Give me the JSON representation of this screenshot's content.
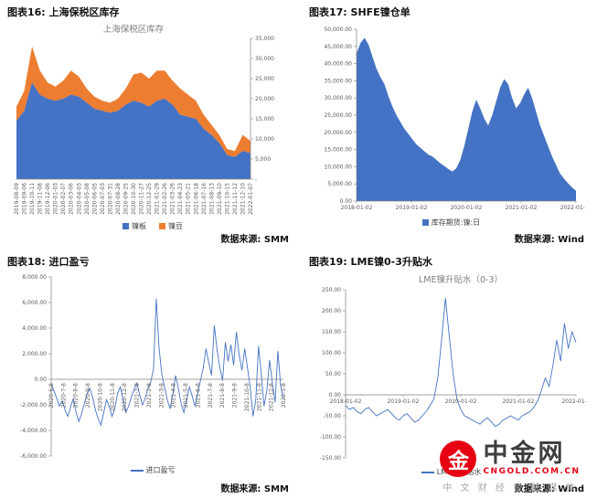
{
  "chart_data": [
    {
      "type": "stacked_area",
      "header": "图表16: 上海保税区库存",
      "inner_title": "上海保税区库存",
      "source_label": "数据来源:",
      "source": "SMM",
      "ylim": [
        0,
        35000
      ],
      "y_ticks": [
        "35,000",
        "30,000",
        "25,000",
        "20,000",
        "15,000",
        "10,000",
        "5,000",
        "-"
      ],
      "categories": [
        "2019-08-09",
        "2019-09-06",
        "2019-10-11",
        "2019-11-08",
        "2019-12-06",
        "2020-01-03",
        "2020-02-07",
        "2020-03-06",
        "2020-04-03",
        "2020-05-08",
        "2020-06-05",
        "2020-07-03",
        "2020-07-31",
        "2020-08-28",
        "2020-09-25",
        "2020-10-30",
        "2020-11-27",
        "2020-12-25",
        "2021-01-29",
        "2021-02-26",
        "2021-03-26",
        "2021-04-23",
        "2021-05-21",
        "2021-06-18",
        "2021-07-16",
        "2021-08-13",
        "2021-09-10",
        "2021-10-15",
        "2021-11-12",
        "2021-12-10",
        "2022-01-07"
      ],
      "series": [
        {
          "name": "镍板",
          "color": "#4472c4",
          "values": [
            14500,
            17000,
            24000,
            21000,
            20000,
            19500,
            20000,
            21000,
            20500,
            19000,
            17500,
            17000,
            16500,
            17000,
            18500,
            19500,
            19000,
            18000,
            19500,
            20000,
            18500,
            16000,
            15500,
            15000,
            12500,
            11000,
            9000,
            6000,
            5500,
            7000,
            6500
          ]
        },
        {
          "name": "镍豆",
          "color": "#ed7d31",
          "values": [
            3500,
            5000,
            9000,
            6000,
            4000,
            3500,
            4500,
            6000,
            5000,
            3500,
            3000,
            2500,
            2500,
            3000,
            4000,
            6500,
            7500,
            7000,
            7500,
            7000,
            6000,
            6500,
            5500,
            4500,
            3500,
            2500,
            2000,
            1500,
            1500,
            4000,
            3000
          ]
        }
      ]
    },
    {
      "type": "area",
      "header": "图表17: SHFE镍仓单",
      "inner_title": "",
      "source_label": "数据来源:",
      "source": "Wind",
      "ylim": [
        0,
        50000
      ],
      "y_ticks": [
        "50,000.00",
        "45,000.00",
        "40,000.00",
        "35,000.00",
        "30,000.00",
        "25,000.00",
        "20,000.00",
        "15,000.00",
        "10,000.00",
        "5,000.00",
        "0.00"
      ],
      "x_ticks": [
        "2018-01-02",
        "2019-01-02",
        "2020-01-02",
        "2021-01-02",
        "2022-01-02"
      ],
      "series": [
        {
          "name": "库存期货:镍:日",
          "color": "#4472c4",
          "values": [
            43000,
            46000,
            47500,
            45500,
            42000,
            38500,
            36000,
            34000,
            30500,
            27500,
            25000,
            23000,
            21000,
            19500,
            18000,
            16500,
            15500,
            14500,
            13500,
            13000,
            12000,
            11000,
            10200,
            9300,
            8600,
            9500,
            12000,
            16000,
            21000,
            26000,
            29500,
            27000,
            24000,
            22000,
            25000,
            29000,
            33000,
            35500,
            34000,
            30000,
            27000,
            28500,
            31000,
            33000,
            30000,
            26000,
            22000,
            19000,
            16000,
            13000,
            10500,
            8000,
            6500,
            5200,
            4000,
            3000
          ]
        }
      ]
    },
    {
      "type": "line",
      "header": "图表18: 进口盈亏",
      "inner_title": "",
      "source_label": "数据来源:",
      "source": "SMM",
      "ylim": [
        -6000,
        8000
      ],
      "y_ticks": [
        "8,000.00",
        "6,000.00",
        "4,000.00",
        "2,000.00",
        "0.00",
        "-2,000.00",
        "-4,000.00",
        "-6,000.00"
      ],
      "x_ticks": [
        "2020-6-8",
        "2020-7-8",
        "2020-8-8",
        "2020-9-8",
        "2020-10-8",
        "2020-11-8",
        "2020-12-8",
        "2021-1-8",
        "2021-2-8",
        "2021-3-8",
        "2021-4-8",
        "2021-5-8",
        "2021-6-8",
        "2021-7-8",
        "2021-8-8",
        "2021-9-8",
        "2021-10-8",
        "2021-11-8",
        "2021-12-8",
        "2022-1-8"
      ],
      "series": [
        {
          "name": "进口盈亏",
          "color": "#4472c4",
          "values": [
            -400,
            -900,
            -1500,
            -2100,
            -1700,
            -2400,
            -2900,
            -2200,
            -1500,
            -2600,
            -3300,
            -2700,
            -1900,
            -1100,
            -700,
            -1400,
            -2400,
            -3100,
            -3600,
            -2600,
            -1600,
            -2100,
            -2900,
            -2300,
            -1100,
            -600,
            -1600,
            -2600,
            -2100,
            -1400,
            -800,
            -300,
            -1200,
            -2000,
            -1500,
            -700,
            -200,
            800,
            6300,
            2500,
            400,
            -600,
            -1600,
            -2300,
            -1200,
            300,
            -700,
            -1900,
            -2600,
            -1600,
            -600,
            -1300,
            -2100,
            -1100,
            -100,
            900,
            2400,
            1300,
            300,
            4200,
            2300,
            900,
            -100,
            2900,
            1400,
            2700,
            1100,
            3700,
            1900,
            700,
            2400,
            900,
            -600,
            -2900,
            -1600,
            2600,
            400,
            -2100,
            -900,
            1500,
            -300,
            -1800,
            2200,
            -500,
            -1500
          ]
        }
      ]
    },
    {
      "type": "line",
      "header": "图表19: LME镍0-3升贴水",
      "inner_title": "LME镍升贴水（0-3）",
      "source_label": "数据来源:",
      "source": "Wind",
      "ylim": [
        -150,
        250
      ],
      "y_ticks": [
        "250.00",
        "200.00",
        "150.00",
        "100.00",
        "50.00",
        "0.00",
        "-50.00",
        "-100.00",
        "-150.00"
      ],
      "x_ticks": [
        "2018-01-02",
        "2019-01-02",
        "2020-01-02",
        "2021-01-02",
        "2022-01-4"
      ],
      "series": [
        {
          "name": "LME镍升贴水",
          "color": "#4472c4",
          "values": [
            -25,
            -35,
            -30,
            -40,
            -45,
            -35,
            -30,
            -40,
            -50,
            -45,
            -40,
            -35,
            -45,
            -55,
            -60,
            -50,
            -45,
            -55,
            -65,
            -60,
            -50,
            -40,
            -25,
            -10,
            40,
            130,
            230,
            140,
            50,
            -10,
            -35,
            -50,
            -55,
            -60,
            -65,
            -70,
            -60,
            -55,
            -65,
            -75,
            -70,
            -60,
            -55,
            -50,
            -55,
            -60,
            -50,
            -45,
            -40,
            -30,
            -15,
            10,
            40,
            20,
            70,
            130,
            80,
            170,
            110,
            150,
            125
          ]
        }
      ]
    }
  ],
  "watermark": {
    "logo_glyph": "金",
    "brand": "中金网",
    "domain": "CNGOLD.COM.CN",
    "tagline": "中 文 财 经 金 融 媒 体",
    "logo_color": "#e60012",
    "brand_color": "#3d3d3d",
    "domain_color": "#e60012",
    "tagline_color": "#a9a9a9"
  }
}
